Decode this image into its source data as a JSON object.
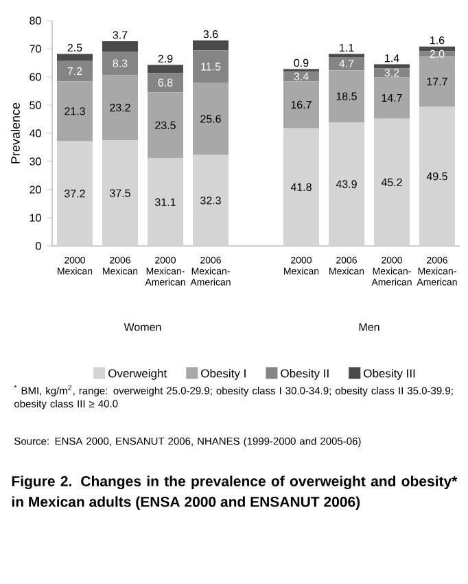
{
  "chart_data": {
    "type": "bar",
    "stacked": true,
    "legend": "bottom",
    "title": "Figure 2. Changes in the prevalence of overweight and obesity* in Mexican adults (ENSA 2000 and ENSANUT 2006)",
    "ylabel": "Prevalence",
    "annotations": [
      "Women",
      "Men",
      "$^{*}$ BMI, kg/m$^{2}$, range: overweight 25.0-29.9; obesity class I 30.0-34.9; obesity class II 35.0-39.9; obesity class III ≥ 40.0",
      "Source: ENSA 2000, ENSANUT 2006, NHANES (1999-2000 and 2005-06)"
    ],
    "categories": [
      "2000 Mexican",
      "2006 Mexican",
      "2000 Mexican-American",
      "2006 Mexican-American",
      null,
      "2000 Mexican",
      "2006 Mexican",
      "2000 Mexican-American",
      "2006 Mexican-American"
    ],
    "ylim": [
      0,
      80
    ],
    "yticks": [
      0,
      10,
      20,
      30,
      40,
      50,
      60,
      70,
      80
    ],
    "series": [
      {
        "name": "Overweight",
        "color": "#d4d4d4",
        "values": [
          37.2,
          37.5,
          31.1,
          32.3,
          null,
          41.8,
          43.9,
          45.2,
          49.5
        ],
        "value_labels": [
          "37.2",
          "37.5",
          "31.1",
          "32.3",
          null,
          "41.8",
          "43.9",
          "45.2",
          "49.5"
        ]
      },
      {
        "name": "Obesity I",
        "color": "#a8a8a8",
        "values": [
          21.3,
          23.2,
          23.5,
          25.6,
          null,
          16.7,
          18.5,
          14.7,
          17.7
        ],
        "value_labels": [
          "21.3",
          "23.2",
          "23.5",
          "25.6",
          null,
          "16.7",
          "18.5",
          "14.7",
          "17.7"
        ]
      },
      {
        "name": "Obesity II",
        "color": "#858585",
        "values": [
          7.2,
          8.3,
          6.8,
          11.5,
          null,
          3.4,
          4.7,
          3.2,
          2.0
        ],
        "value_labels": [
          "7.2",
          "8.3",
          "6.8",
          "11.5",
          null,
          "3.4",
          "4.7",
          "3.2",
          "2.0"
        ]
      },
      {
        "name": "Obesity III",
        "color": "#4a4a4a",
        "values": [
          2.5,
          3.7,
          2.9,
          3.6,
          null,
          0.9,
          1.1,
          1.4,
          1.6
        ],
        "value_labels": [
          "2.5",
          "3.7",
          "2.9",
          "3.6",
          null,
          "0.9",
          "1.1",
          "1.4",
          "1.6"
        ]
      }
    ]
  }
}
